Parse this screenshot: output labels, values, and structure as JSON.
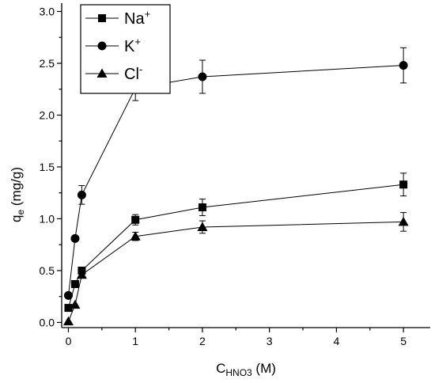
{
  "chart_data": {
    "type": "scatter",
    "xlabel": {
      "main": "C",
      "sub": "HNO3",
      "unit": " (M)"
    },
    "ylabel": {
      "main": "q",
      "sub": "e",
      "unit": " (mg/g)"
    },
    "xlim": [
      -0.1,
      5.4
    ],
    "ylim": [
      -0.05,
      3.08
    ],
    "x_ticks": [
      0,
      1,
      2,
      3,
      4,
      5
    ],
    "x_tick_labels": [
      "0",
      "1",
      "2",
      "3",
      "4",
      "5"
    ],
    "y_ticks": [
      0.0,
      0.5,
      1.0,
      1.5,
      2.0,
      2.5,
      3.0
    ],
    "y_tick_labels": [
      "0.0",
      "0.5",
      "1.0",
      "1.5",
      "2.0",
      "2.5",
      "3.0"
    ],
    "legend_position": "top-left",
    "series": [
      {
        "name": "Na",
        "sup": "+",
        "marker": "square",
        "x": [
          0,
          0.1,
          0.2,
          1,
          2,
          5
        ],
        "y": [
          0.14,
          0.37,
          0.5,
          0.99,
          1.11,
          1.33
        ],
        "err": [
          0,
          0,
          0,
          0.05,
          0.08,
          0.11
        ]
      },
      {
        "name": "K",
        "sup": "+",
        "marker": "circle",
        "x": [
          0,
          0.1,
          0.2,
          1,
          2,
          5
        ],
        "y": [
          0.26,
          0.81,
          1.23,
          2.26,
          2.37,
          2.48
        ],
        "err": [
          0,
          0,
          0.09,
          0.12,
          0.16,
          0.17
        ]
      },
      {
        "name": "Cl",
        "sup": "-",
        "marker": "triangle",
        "x": [
          0,
          0.1,
          0.2,
          1,
          2,
          5
        ],
        "y": [
          0.01,
          0.17,
          0.46,
          0.83,
          0.92,
          0.97
        ],
        "err": [
          0,
          0,
          0,
          0.04,
          0.06,
          0.09
        ]
      }
    ]
  }
}
